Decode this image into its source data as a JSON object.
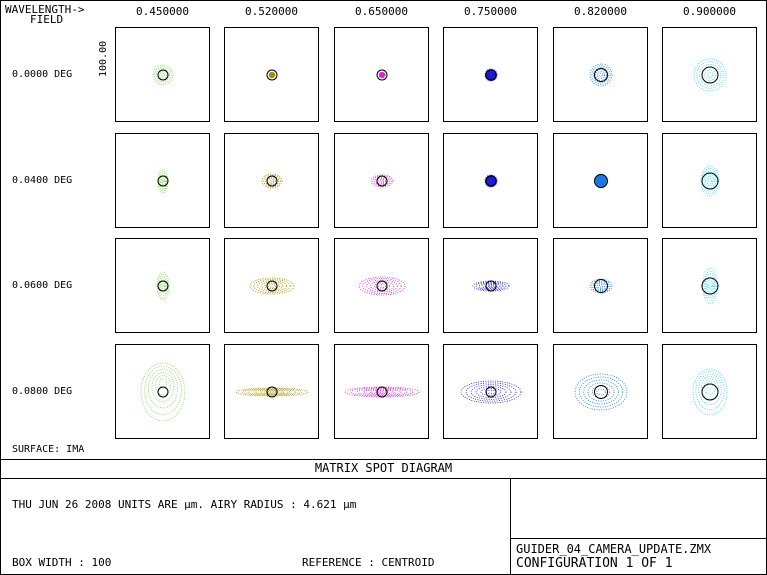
{
  "header": {
    "wavelength_label": "WAVELENGTH->",
    "field_label": "FIELD",
    "wavelengths": [
      "0.450000",
      "0.520000",
      "0.650000",
      "0.750000",
      "0.820000",
      "0.900000"
    ]
  },
  "fields": [
    "0.0000 DEG",
    "0.0400 DEG",
    "0.0600 DEG",
    "0.0800 DEG"
  ],
  "scale_bar_label": "100.00",
  "surface_label": "SURFACE: IMA",
  "title": "MATRIX SPOT DIAGRAM",
  "info": {
    "date_units": "THU JUN 26 2008  UNITS ARE µm.  AIRY RADIUS : 4.621 µm",
    "box_width": "BOX WIDTH   :       100",
    "reference": "REFERENCE   : CENTROID",
    "file_name": "GUIDER_04_CAMERA_UPDATE.ZMX",
    "configuration": "CONFIGURATION  1  OF  1"
  },
  "colors": {
    "w1": "#7ed957",
    "w2": "#a09000",
    "w3": "#e020d0",
    "w4": "#1a1ad8",
    "w5": "#1a78e0",
    "w6": "#33d6e8"
  },
  "chart_data": {
    "type": "scatter",
    "title": "MATRIX SPOT DIAGRAM",
    "x": [
      "0.450000",
      "0.520000",
      "0.650000",
      "0.750000",
      "0.820000",
      "0.900000"
    ],
    "y": [
      "0.0000 DEG",
      "0.0400 DEG",
      "0.0600 DEG",
      "0.0800 DEG"
    ],
    "units": "µm",
    "box_width": 100,
    "airy_radius": 4.621,
    "reference": "CENTROID",
    "series": [
      {
        "field": "0.0000 DEG",
        "spot_sizes": [
          [
            20,
            20
          ],
          [
            6,
            6
          ],
          [
            6,
            6
          ],
          [
            12,
            12
          ],
          [
            22,
            22
          ],
          [
            32,
            32
          ]
        ]
      },
      {
        "field": "0.0400 DEG",
        "spot_sizes": [
          [
            10,
            24
          ],
          [
            20,
            14
          ],
          [
            22,
            12
          ],
          [
            12,
            12
          ],
          [
            12,
            14
          ],
          [
            18,
            30
          ]
        ]
      },
      {
        "field": "0.0600 DEG",
        "spot_sizes": [
          [
            12,
            28
          ],
          [
            44,
            16
          ],
          [
            46,
            18
          ],
          [
            36,
            10
          ],
          [
            22,
            14
          ],
          [
            14,
            36
          ]
        ]
      },
      {
        "field": "0.0800 DEG",
        "spot_sizes": [
          [
            44,
            58
          ],
          [
            72,
            8
          ],
          [
            74,
            10
          ],
          [
            60,
            22
          ],
          [
            52,
            36
          ],
          [
            34,
            46
          ]
        ]
      }
    ]
  }
}
